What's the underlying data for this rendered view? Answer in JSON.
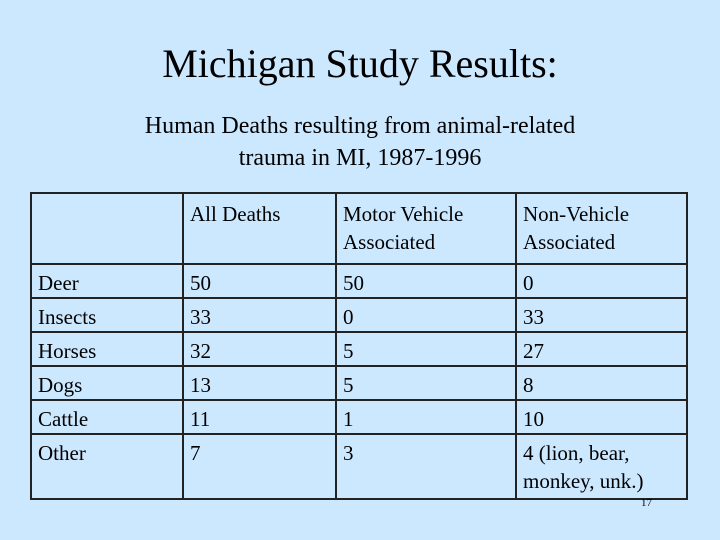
{
  "title": "Michigan Study Results:",
  "subtitle": "Human Deaths resulting from animal-related trauma in MI, 1987-1996",
  "table": {
    "header": [
      "All Deaths",
      "Motor Vehicle Associated",
      "Non-Vehicle Associated"
    ],
    "rows": [
      [
        "Deer",
        50,
        50,
        0
      ],
      [
        "Insects",
        33,
        0,
        33
      ],
      [
        "Horses",
        32,
        5,
        27
      ],
      [
        "Dogs",
        13,
        5,
        8
      ],
      [
        "Cattle",
        11,
        1,
        10
      ],
      [
        "Other",
        7,
        3,
        "4 (lion, bear, monkey, unk.)"
      ]
    ]
  },
  "page_number": "17"
}
